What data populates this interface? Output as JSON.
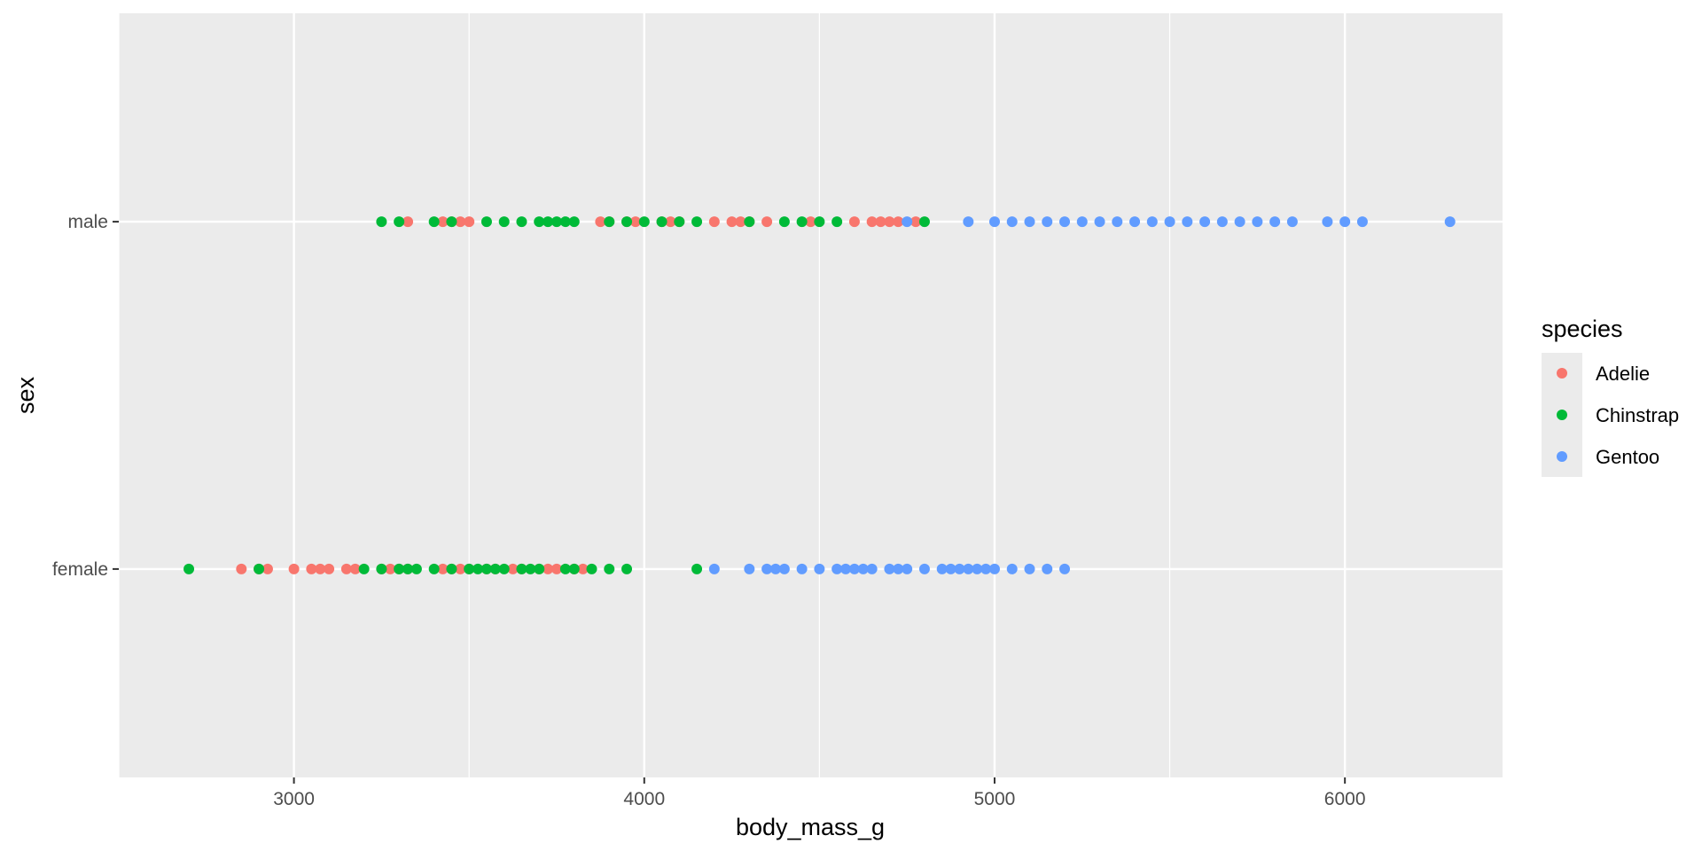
{
  "chart_data": {
    "type": "scatter",
    "xlabel": "body_mass_g",
    "ylabel": "sex",
    "xlim": [
      2500,
      6450
    ],
    "x_ticks": [
      3000,
      4000,
      5000,
      6000
    ],
    "x_tick_labels": [
      "3000",
      "4000",
      "5000",
      "6000"
    ],
    "y_categories": [
      "female",
      "male"
    ],
    "grid": true,
    "panel_background": "#EBEBEB",
    "legend": {
      "title": "species",
      "position": "right"
    },
    "series": [
      {
        "name": "Adelie",
        "color": "#F8766D",
        "points": [
          {
            "x": 3325,
            "y": "male"
          },
          {
            "x": 3425,
            "y": "male"
          },
          {
            "x": 3450,
            "y": "male"
          },
          {
            "x": 3475,
            "y": "male"
          },
          {
            "x": 3500,
            "y": "male"
          },
          {
            "x": 3875,
            "y": "male"
          },
          {
            "x": 3900,
            "y": "male"
          },
          {
            "x": 3950,
            "y": "male"
          },
          {
            "x": 3975,
            "y": "male"
          },
          {
            "x": 4050,
            "y": "male"
          },
          {
            "x": 4075,
            "y": "male"
          },
          {
            "x": 4100,
            "y": "male"
          },
          {
            "x": 4200,
            "y": "male"
          },
          {
            "x": 4250,
            "y": "male"
          },
          {
            "x": 4275,
            "y": "male"
          },
          {
            "x": 4300,
            "y": "male"
          },
          {
            "x": 4350,
            "y": "male"
          },
          {
            "x": 4475,
            "y": "male"
          },
          {
            "x": 4600,
            "y": "male"
          },
          {
            "x": 4650,
            "y": "male"
          },
          {
            "x": 4675,
            "y": "male"
          },
          {
            "x": 4700,
            "y": "male"
          },
          {
            "x": 4725,
            "y": "male"
          },
          {
            "x": 4775,
            "y": "male"
          },
          {
            "x": 2850,
            "y": "female"
          },
          {
            "x": 2900,
            "y": "female"
          },
          {
            "x": 2925,
            "y": "female"
          },
          {
            "x": 3000,
            "y": "female"
          },
          {
            "x": 3050,
            "y": "female"
          },
          {
            "x": 3075,
            "y": "female"
          },
          {
            "x": 3100,
            "y": "female"
          },
          {
            "x": 3150,
            "y": "female"
          },
          {
            "x": 3175,
            "y": "female"
          },
          {
            "x": 3250,
            "y": "female"
          },
          {
            "x": 3275,
            "y": "female"
          },
          {
            "x": 3300,
            "y": "female"
          },
          {
            "x": 3325,
            "y": "female"
          },
          {
            "x": 3425,
            "y": "female"
          },
          {
            "x": 3450,
            "y": "female"
          },
          {
            "x": 3475,
            "y": "female"
          },
          {
            "x": 3500,
            "y": "female"
          },
          {
            "x": 3550,
            "y": "female"
          },
          {
            "x": 3575,
            "y": "female"
          },
          {
            "x": 3625,
            "y": "female"
          },
          {
            "x": 3650,
            "y": "female"
          },
          {
            "x": 3700,
            "y": "female"
          },
          {
            "x": 3725,
            "y": "female"
          },
          {
            "x": 3750,
            "y": "female"
          },
          {
            "x": 3800,
            "y": "female"
          },
          {
            "x": 3825,
            "y": "female"
          }
        ]
      },
      {
        "name": "Chinstrap",
        "color": "#00BA38",
        "points": [
          {
            "x": 3250,
            "y": "male"
          },
          {
            "x": 3300,
            "y": "male"
          },
          {
            "x": 3400,
            "y": "male"
          },
          {
            "x": 3450,
            "y": "male"
          },
          {
            "x": 3550,
            "y": "male"
          },
          {
            "x": 3600,
            "y": "male"
          },
          {
            "x": 3650,
            "y": "male"
          },
          {
            "x": 3700,
            "y": "male"
          },
          {
            "x": 3725,
            "y": "male"
          },
          {
            "x": 3750,
            "y": "male"
          },
          {
            "x": 3775,
            "y": "male"
          },
          {
            "x": 3800,
            "y": "male"
          },
          {
            "x": 3900,
            "y": "male"
          },
          {
            "x": 3950,
            "y": "male"
          },
          {
            "x": 4000,
            "y": "male"
          },
          {
            "x": 4050,
            "y": "male"
          },
          {
            "x": 4100,
            "y": "male"
          },
          {
            "x": 4150,
            "y": "male"
          },
          {
            "x": 4300,
            "y": "male"
          },
          {
            "x": 4400,
            "y": "male"
          },
          {
            "x": 4450,
            "y": "male"
          },
          {
            "x": 4500,
            "y": "male"
          },
          {
            "x": 4550,
            "y": "male"
          },
          {
            "x": 4800,
            "y": "male"
          },
          {
            "x": 2700,
            "y": "female"
          },
          {
            "x": 2900,
            "y": "female"
          },
          {
            "x": 3200,
            "y": "female"
          },
          {
            "x": 3250,
            "y": "female"
          },
          {
            "x": 3300,
            "y": "female"
          },
          {
            "x": 3325,
            "y": "female"
          },
          {
            "x": 3350,
            "y": "female"
          },
          {
            "x": 3400,
            "y": "female"
          },
          {
            "x": 3450,
            "y": "female"
          },
          {
            "x": 3500,
            "y": "female"
          },
          {
            "x": 3525,
            "y": "female"
          },
          {
            "x": 3550,
            "y": "female"
          },
          {
            "x": 3575,
            "y": "female"
          },
          {
            "x": 3600,
            "y": "female"
          },
          {
            "x": 3650,
            "y": "female"
          },
          {
            "x": 3675,
            "y": "female"
          },
          {
            "x": 3700,
            "y": "female"
          },
          {
            "x": 3775,
            "y": "female"
          },
          {
            "x": 3800,
            "y": "female"
          },
          {
            "x": 3850,
            "y": "female"
          },
          {
            "x": 3900,
            "y": "female"
          },
          {
            "x": 3950,
            "y": "female"
          },
          {
            "x": 4150,
            "y": "female"
          }
        ]
      },
      {
        "name": "Gentoo",
        "color": "#619CFF",
        "points": [
          {
            "x": 4750,
            "y": "male"
          },
          {
            "x": 4925,
            "y": "male"
          },
          {
            "x": 5000,
            "y": "male"
          },
          {
            "x": 5050,
            "y": "male"
          },
          {
            "x": 5100,
            "y": "male"
          },
          {
            "x": 5150,
            "y": "male"
          },
          {
            "x": 5200,
            "y": "male"
          },
          {
            "x": 5250,
            "y": "male"
          },
          {
            "x": 5300,
            "y": "male"
          },
          {
            "x": 5350,
            "y": "male"
          },
          {
            "x": 5400,
            "y": "male"
          },
          {
            "x": 5450,
            "y": "male"
          },
          {
            "x": 5500,
            "y": "male"
          },
          {
            "x": 5550,
            "y": "male"
          },
          {
            "x": 5600,
            "y": "male"
          },
          {
            "x": 5650,
            "y": "male"
          },
          {
            "x": 5700,
            "y": "male"
          },
          {
            "x": 5750,
            "y": "male"
          },
          {
            "x": 5800,
            "y": "male"
          },
          {
            "x": 5850,
            "y": "male"
          },
          {
            "x": 5950,
            "y": "male"
          },
          {
            "x": 6000,
            "y": "male"
          },
          {
            "x": 6050,
            "y": "male"
          },
          {
            "x": 6300,
            "y": "male"
          },
          {
            "x": 4200,
            "y": "female"
          },
          {
            "x": 4300,
            "y": "female"
          },
          {
            "x": 4350,
            "y": "female"
          },
          {
            "x": 4375,
            "y": "female"
          },
          {
            "x": 4400,
            "y": "female"
          },
          {
            "x": 4450,
            "y": "female"
          },
          {
            "x": 4500,
            "y": "female"
          },
          {
            "x": 4550,
            "y": "female"
          },
          {
            "x": 4575,
            "y": "female"
          },
          {
            "x": 4600,
            "y": "female"
          },
          {
            "x": 4625,
            "y": "female"
          },
          {
            "x": 4650,
            "y": "female"
          },
          {
            "x": 4700,
            "y": "female"
          },
          {
            "x": 4725,
            "y": "female"
          },
          {
            "x": 4750,
            "y": "female"
          },
          {
            "x": 4800,
            "y": "female"
          },
          {
            "x": 4850,
            "y": "female"
          },
          {
            "x": 4875,
            "y": "female"
          },
          {
            "x": 4900,
            "y": "female"
          },
          {
            "x": 4925,
            "y": "female"
          },
          {
            "x": 4950,
            "y": "female"
          },
          {
            "x": 4975,
            "y": "female"
          },
          {
            "x": 5000,
            "y": "female"
          },
          {
            "x": 5050,
            "y": "female"
          },
          {
            "x": 5100,
            "y": "female"
          },
          {
            "x": 5150,
            "y": "female"
          },
          {
            "x": 5200,
            "y": "female"
          }
        ]
      }
    ]
  }
}
